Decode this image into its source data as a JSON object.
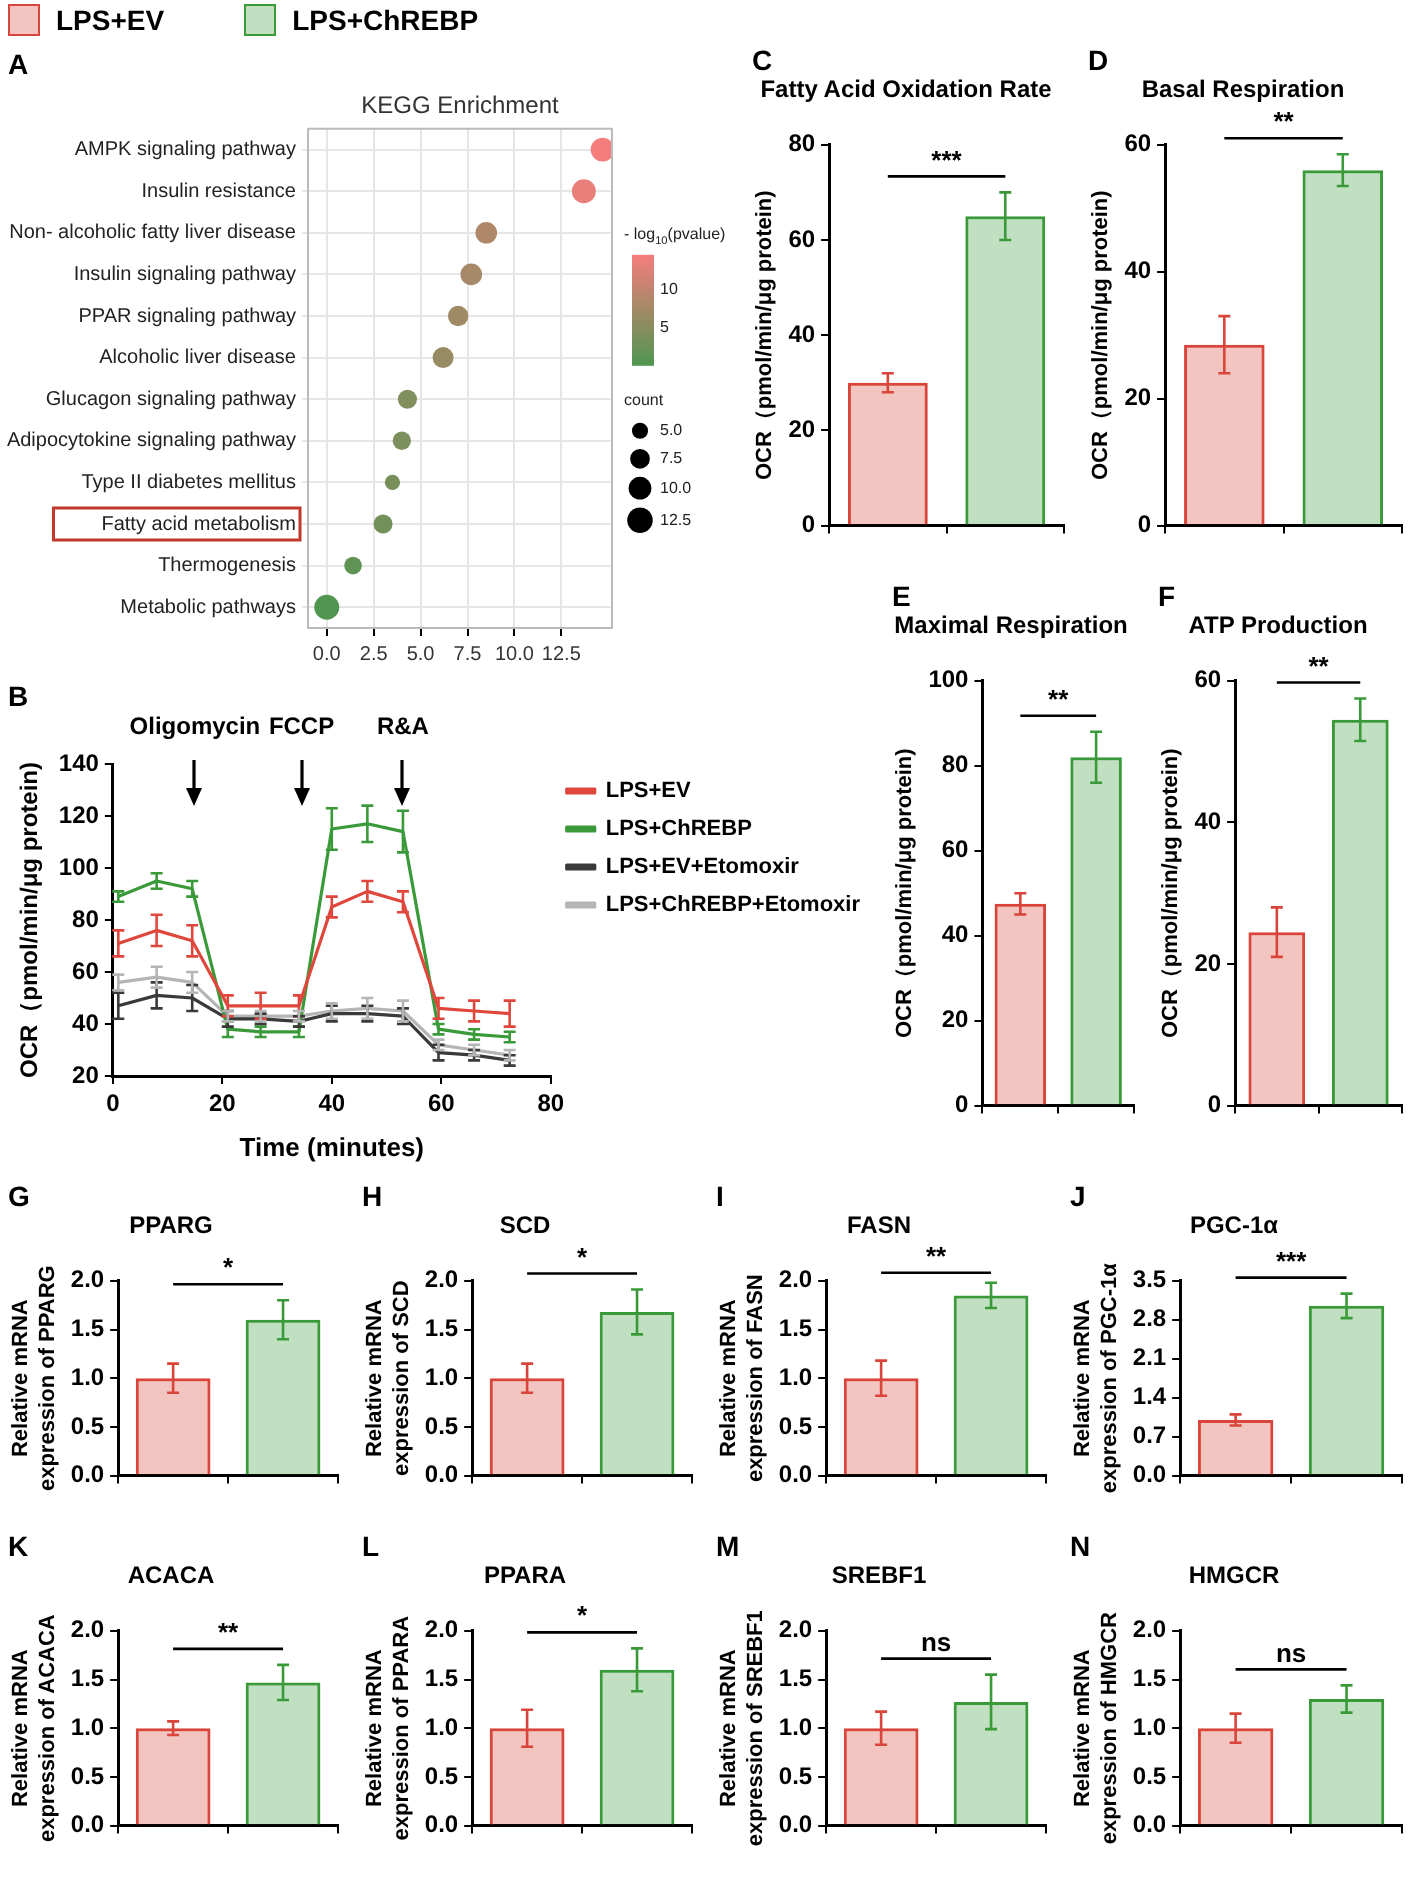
{
  "chart_data": [
    {
      "type": "bubble",
      "title": "KEGG Enrichment",
      "orientation": "horizontal",
      "categories": [
        "AMPK signaling pathway",
        "Insulin resistance",
        "Non- alcoholic fatty liver disease",
        "Insulin signaling pathway",
        "PPAR signaling pathway",
        "Alcoholic liver disease",
        "Glucagon signaling pathway",
        "Adipocytokine signaling pathway",
        "Type II diabetes mellitus",
        "Fatty acid metabolism",
        "Thermogenesis",
        "Metabolic pathways"
      ],
      "values": [
        14.7,
        13.7,
        8.5,
        7.7,
        7.0,
        6.2,
        4.3,
        4.0,
        3.5,
        3.0,
        1.4,
        0.0
      ],
      "sizes": [
        11,
        11,
        9,
        9,
        8,
        8.5,
        7,
        6.5,
        4.5,
        7,
        6,
        12
      ],
      "cvalues": [
        14.7,
        13.7,
        8.5,
        7.7,
        7.0,
        6.2,
        4.3,
        4.0,
        3.5,
        3.0,
        1.4,
        0.0
      ],
      "size_legend": [
        {
          "value": 5,
          "label": "5.0"
        },
        7.5,
        {
          "value": 10,
          "label": "10.0"
        },
        12.5
      ],
      "legend_title": "count",
      "clabel": "- log$_{10}$(pvalue)",
      "clim": [
        0,
        14.7
      ],
      "cticks": [
        5,
        10
      ],
      "xlim": [
        -1,
        15.2
      ],
      "xticks": [
        {
          "value": 0,
          "label": "0.0"
        },
        2.5,
        {
          "value": 5,
          "label": "5.0"
        },
        7.5,
        {
          "value": 10,
          "label": "10.0"
        },
        12.5
      ],
      "grid": true,
      "annotations": [
        "A"
      ]
    },
    {
      "type": "line",
      "xlabel": "Time (minutes)",
      "ylabel": "OCR（pmol/min/μg protein)",
      "x": [
        1,
        8,
        14.5,
        21,
        27,
        34,
        40,
        46.5,
        53,
        59.5,
        66,
        72.5
      ],
      "series": [
        {
          "name": "LPS+EV",
          "color": "#e0473c",
          "values": [
            71,
            76,
            72,
            47,
            47,
            47,
            85,
            91,
            87,
            46,
            45,
            44
          ],
          "errors": [
            5,
            6,
            6,
            4,
            5,
            4,
            4,
            4,
            4,
            4,
            4,
            5
          ]
        },
        {
          "name": "LPS+ChREBP",
          "color": "#3a9a3a",
          "values": [
            89,
            95,
            92,
            38,
            37,
            37,
            115,
            117,
            114,
            38,
            36,
            35
          ],
          "errors": [
            2,
            3,
            3,
            3,
            2,
            2,
            8,
            7,
            8,
            2,
            2,
            2
          ]
        },
        {
          "name": "LPS+EV+Etomoxir",
          "color": "#3a3a3a",
          "values": [
            47,
            51,
            50,
            42,
            42,
            41,
            44,
            44,
            43,
            29,
            28,
            26
          ],
          "errors": [
            5,
            5,
            5,
            3,
            2,
            2,
            3,
            3,
            3,
            3,
            2,
            2
          ]
        },
        {
          "name": "LPS+ChREBP+Etomoxir",
          "color": "#b5b5b5",
          "values": [
            56,
            58,
            56,
            43,
            43,
            43,
            45,
            46,
            45,
            32,
            30,
            28
          ],
          "errors": [
            3,
            4,
            4,
            2,
            2,
            2,
            3,
            4,
            4,
            2,
            2,
            2
          ]
        }
      ],
      "xlim": [
        0,
        80
      ],
      "xticks": [
        0,
        20,
        40,
        60,
        80
      ],
      "ylim": [
        20,
        140
      ],
      "yticks": [
        20,
        40,
        60,
        80,
        100,
        120,
        140
      ],
      "line_style": "solid",
      "legend": "top right",
      "annotations": [
        "B",
        "Oligomycin",
        "FCCP",
        "R&A"
      ]
    },
    {
      "type": "bar",
      "title": "Fatty Acid Oxidation Rate",
      "ylabel": "OCR（pmol/min/μg protein)",
      "categories": [
        null,
        null
      ],
      "legend": "top left",
      "series": [
        {
          "name": "LPS+EV",
          "color": "#d9453a",
          "values": [
            30,
            null
          ],
          "errors": [
            2,
            null
          ]
        },
        {
          "name": "LPS+ChREBP",
          "color": "#3a9a3a",
          "values": [
            null,
            65
          ],
          "errors": [
            null,
            5
          ]
        }
      ],
      "ylim": [
        0,
        80
      ],
      "yticks": [
        0,
        20,
        40,
        60,
        80
      ],
      "annotations": [
        "C",
        "***"
      ]
    },
    {
      "type": "bar",
      "title": "Basal Respiration",
      "ylabel": "OCR（pmol/min/μg protein)",
      "categories": [
        null,
        null
      ],
      "series": [
        {
          "color": "#d9453a",
          "values": [
            28.5,
            null
          ],
          "errors": [
            4.5,
            null
          ]
        },
        {
          "color": "#3a9a3a",
          "values": [
            null,
            56
          ],
          "errors": [
            null,
            2.5
          ]
        }
      ],
      "ylim": [
        0,
        60
      ],
      "yticks": [
        0,
        20,
        40,
        60
      ],
      "annotations": [
        "D",
        "**"
      ]
    },
    {
      "type": "bar",
      "title": "Maximal Respiration",
      "ylabel": "OCR（pmol/min/μg protein)",
      "categories": [
        null,
        null
      ],
      "series": [
        {
          "color": "#d9453a",
          "values": [
            47.5,
            null
          ],
          "errors": [
            2.5,
            null
          ]
        },
        {
          "color": "#3a9a3a",
          "values": [
            null,
            82
          ],
          "errors": [
            null,
            6
          ]
        }
      ],
      "ylim": [
        0,
        100
      ],
      "yticks": [
        0,
        20,
        40,
        60,
        80,
        100
      ],
      "annotations": [
        "E",
        "**"
      ]
    },
    {
      "type": "bar",
      "title": "ATP Production",
      "ylabel": "OCR（pmol/min/μg protein)",
      "categories": [
        null,
        null
      ],
      "series": [
        {
          "color": "#d9453a",
          "values": [
            24.5,
            null
          ],
          "errors": [
            3.5,
            null
          ]
        },
        {
          "color": "#3a9a3a",
          "values": [
            null,
            54.5
          ],
          "errors": [
            null,
            3
          ]
        }
      ],
      "ylim": [
        0,
        60
      ],
      "yticks": [
        0,
        20,
        40,
        60
      ],
      "annotations": [
        "F",
        "**"
      ]
    },
    {
      "type": "bar",
      "title": "PPARG",
      "ylabel": "Relative mRNA\nexpression of PPARG",
      "categories": [
        null,
        null
      ],
      "series": [
        {
          "color": "#d9453a",
          "values": [
            1.0,
            null
          ],
          "errors": [
            0.15,
            null
          ]
        },
        {
          "color": "#3a9a3a",
          "values": [
            null,
            1.6
          ],
          "errors": [
            null,
            0.2
          ]
        }
      ],
      "ylim": [
        0,
        2
      ],
      "yticks": [
        {
          "value": 0,
          "label": "0.0"
        },
        0.5,
        {
          "value": 1,
          "label": "1.0"
        },
        1.5,
        {
          "value": 2,
          "label": "2.0"
        }
      ],
      "annotations": [
        "G",
        "*"
      ]
    },
    {
      "type": "bar",
      "title": "SCD",
      "ylabel": "Relative mRNA\nexpression of SCD",
      "categories": [
        null,
        null
      ],
      "series": [
        {
          "color": "#d9453a",
          "values": [
            1.0,
            null
          ],
          "errors": [
            0.15,
            null
          ]
        },
        {
          "color": "#3a9a3a",
          "values": [
            null,
            1.68
          ],
          "errors": [
            null,
            0.23
          ]
        }
      ],
      "ylim": [
        0,
        2
      ],
      "yticks": [
        {
          "value": 0,
          "label": "0.0"
        },
        0.5,
        {
          "value": 1,
          "label": "1.0"
        },
        1.5,
        {
          "value": 2,
          "label": "2.0"
        }
      ],
      "annotations": [
        "H",
        "*"
      ]
    },
    {
      "type": "bar",
      "title": "FASN",
      "ylabel": "Relative mRNA\nexpression of FASN",
      "categories": [
        null,
        null
      ],
      "series": [
        {
          "color": "#d9453a",
          "values": [
            1.0,
            null
          ],
          "errors": [
            0.18,
            null
          ]
        },
        {
          "color": "#3a9a3a",
          "values": [
            null,
            1.85
          ],
          "errors": [
            null,
            0.13
          ]
        }
      ],
      "ylim": [
        0,
        2
      ],
      "yticks": [
        {
          "value": 0,
          "label": "0.0"
        },
        0.5,
        {
          "value": 1,
          "label": "1.0"
        },
        1.5,
        {
          "value": 2,
          "label": "2.0"
        }
      ],
      "annotations": [
        "I",
        "**"
      ]
    },
    {
      "type": "bar",
      "title": "PGC-1α",
      "ylabel": "Relative mRNA\nexpression of PGC-1α",
      "categories": [
        null,
        null
      ],
      "series": [
        {
          "color": "#d9453a",
          "values": [
            1.0,
            null
          ],
          "errors": [
            0.1,
            null
          ]
        },
        {
          "color": "#3a9a3a",
          "values": [
            null,
            3.05
          ],
          "errors": [
            null,
            0.22
          ]
        }
      ],
      "ylim": [
        0,
        3.5
      ],
      "yticks": [
        {
          "value": 0,
          "label": "0.0"
        },
        0.7,
        1.4,
        2.1,
        2.8,
        3.5
      ],
      "annotations": [
        "J",
        "***"
      ]
    },
    {
      "type": "bar",
      "title": "ACACA",
      "ylabel": "Relative mRNA\nexpression of ACACA",
      "categories": [
        null,
        null
      ],
      "series": [
        {
          "color": "#d9453a",
          "values": [
            1.0,
            null
          ],
          "errors": [
            0.07,
            null
          ]
        },
        {
          "color": "#3a9a3a",
          "values": [
            null,
            1.47
          ],
          "errors": [
            null,
            0.18
          ]
        }
      ],
      "ylim": [
        0,
        2
      ],
      "yticks": [
        {
          "value": 0,
          "label": "0.0"
        },
        0.5,
        {
          "value": 1,
          "label": "1.0"
        },
        1.5,
        {
          "value": 2,
          "label": "2.0"
        }
      ],
      "annotations": [
        "K",
        "**"
      ]
    },
    {
      "type": "bar",
      "title": "PPARA",
      "ylabel": "Relative mRNA\nexpression of PPARA",
      "categories": [
        null,
        null
      ],
      "series": [
        {
          "color": "#d9453a",
          "values": [
            1.0,
            null
          ],
          "errors": [
            0.19,
            null
          ]
        },
        {
          "color": "#3a9a3a",
          "values": [
            null,
            1.6
          ],
          "errors": [
            null,
            0.22
          ]
        }
      ],
      "ylim": [
        0,
        2
      ],
      "yticks": [
        {
          "value": 0,
          "label": "0.0"
        },
        0.5,
        {
          "value": 1,
          "label": "1.0"
        },
        1.5,
        {
          "value": 2,
          "label": "2.0"
        }
      ],
      "annotations": [
        "L",
        "*"
      ]
    },
    {
      "type": "bar",
      "title": "SREBF1",
      "ylabel": "Relative mRNA\nexpression of SREBF1",
      "categories": [
        null,
        null
      ],
      "series": [
        {
          "color": "#d9453a",
          "values": [
            1.0,
            null
          ],
          "errors": [
            0.17,
            null
          ]
        },
        {
          "color": "#3a9a3a",
          "values": [
            null,
            1.27
          ],
          "errors": [
            null,
            0.28
          ]
        }
      ],
      "ylim": [
        0,
        2
      ],
      "yticks": [
        {
          "value": 0,
          "label": "0.0"
        },
        0.5,
        {
          "value": 1,
          "label": "1.0"
        },
        1.5,
        {
          "value": 2,
          "label": "2.0"
        }
      ],
      "annotations": [
        "M",
        "ns"
      ]
    },
    {
      "type": "bar",
      "title": "HMGCR",
      "ylabel": "Relative mRNA\nexpression of HMGCR",
      "categories": [
        null,
        null
      ],
      "series": [
        {
          "color": "#d9453a",
          "values": [
            1.0,
            null
          ],
          "errors": [
            0.15,
            null
          ]
        },
        {
          "color": "#3a9a3a",
          "values": [
            null,
            1.3
          ],
          "errors": [
            null,
            0.14
          ]
        }
      ],
      "ylim": [
        0,
        2
      ],
      "yticks": [
        {
          "value": 0,
          "label": "0.0"
        },
        0.5,
        {
          "value": 1,
          "label": "1.0"
        },
        1.5,
        {
          "value": 2,
          "label": "2.0"
        }
      ],
      "annotations": [
        "N",
        "ns"
      ]
    }
  ]
}
